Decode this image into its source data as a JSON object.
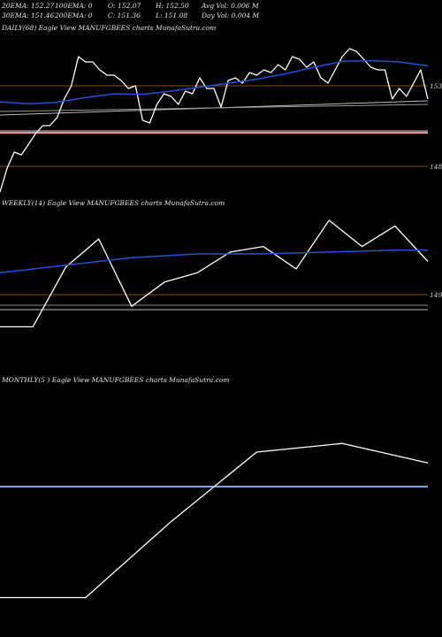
{
  "header": {
    "row1": [
      "20EMA: 152.27",
      "100EMA: 0",
      "O: 152.07",
      "H: 152.50",
      "Avg Vol: 0.006  M"
    ],
    "row2": [
      "30EMA: 151.46",
      "200EMA: 0",
      "C: 151.36",
      "L: 151.08",
      "Day Vol: 0.004 M"
    ]
  },
  "colors": {
    "background": "#000000",
    "price": "#ffffff",
    "ema": "#1e50dc",
    "pink": "#f08cb4",
    "blue_band": "#7aa6e6",
    "orange_grid": "#b06a1a",
    "gray": "#bbbbbb"
  },
  "chart_data": [
    {
      "type": "line",
      "panel": "daily",
      "label": "DAILY(68) Eagle   View  MANUFGBEES charts MunafaSutra.com",
      "ylim": [
        147.8,
        153.8
      ],
      "yticks": [
        {
          "value": 153,
          "label": "153"
        },
        {
          "value": 148,
          "label": "148"
        }
      ],
      "hlines": [
        151.35,
        151.22
      ],
      "series": [
        {
          "role": "close",
          "x": [
            0,
            1,
            2,
            3,
            4,
            5,
            6,
            7,
            8,
            9,
            10,
            11,
            12,
            13,
            14,
            15,
            16,
            17,
            18,
            19,
            20,
            21,
            22,
            23,
            24,
            25,
            26,
            27,
            28,
            29,
            30,
            31,
            32,
            33,
            34,
            35,
            36,
            37,
            38,
            39,
            40,
            41,
            42,
            43,
            44,
            45,
            46,
            47,
            48,
            49,
            50,
            51,
            52,
            53,
            54,
            55,
            56,
            57,
            58,
            59,
            60
          ],
          "values": [
            147.9,
            148.8,
            149.4,
            149.3,
            149.7,
            150.1,
            150.4,
            150.4,
            150.7,
            151.4,
            151.9,
            153.0,
            152.8,
            152.8,
            152.5,
            152.3,
            152.3,
            152.1,
            151.8,
            151.9,
            150.6,
            150.5,
            151.2,
            151.6,
            151.5,
            151.2,
            151.7,
            151.6,
            152.2,
            151.8,
            151.8,
            151.1,
            152.1,
            152.2,
            152.0,
            152.4,
            152.3,
            152.5,
            152.4,
            152.7,
            152.5,
            153.0,
            152.9,
            152.6,
            152.8,
            152.2,
            152.0,
            152.5,
            153.0,
            153.3,
            153.2,
            152.9,
            152.6,
            152.5,
            152.5,
            151.4,
            151.8,
            151.5,
            152.0,
            152.5,
            151.4
          ]
        },
        {
          "role": "ema",
          "x": [
            0,
            4,
            8,
            12,
            16,
            20,
            24,
            28,
            32,
            36,
            40,
            44,
            48,
            52,
            56,
            60
          ],
          "values": [
            151.3,
            151.22,
            151.28,
            151.46,
            151.6,
            151.58,
            151.7,
            151.85,
            152.0,
            152.15,
            152.35,
            152.6,
            152.82,
            152.85,
            152.8,
            152.65
          ]
        }
      ]
    },
    {
      "type": "line",
      "panel": "weekly",
      "label": "WEEKLY(14) Eagle   View  MANUFGBEES charts MunafaSutra.com",
      "ylim": [
        146.4,
        153.5
      ],
      "yticks": [
        {
          "value": 149,
          "label": "149"
        }
      ],
      "hlines": [
        148.3,
        148.1
      ],
      "series": [
        {
          "role": "close",
          "x": [
            0,
            1,
            2,
            3,
            4,
            5,
            6,
            7,
            8,
            9,
            10,
            11,
            12,
            13
          ],
          "values": [
            146.9,
            146.9,
            150.1,
            151.6,
            148.0,
            149.3,
            149.8,
            150.9,
            151.2,
            150.0,
            152.6,
            151.2,
            152.3,
            150.4
          ]
        },
        {
          "role": "ema",
          "x": [
            0,
            2,
            4,
            6,
            8,
            10,
            12,
            13
          ],
          "values": [
            149.8,
            150.2,
            150.6,
            150.8,
            150.8,
            150.9,
            151.0,
            151.0
          ]
        }
      ]
    },
    {
      "type": "line",
      "panel": "monthly",
      "label": "MONTHLY(5           ) Eagle   View  MANUFGBEES charts MunafaSutra.com",
      "ylim": [
        143.5,
        154.5
      ],
      "yticks": [],
      "hlines": [
        148.5
      ],
      "series": [
        {
          "role": "close",
          "x": [
            0,
            1,
            2,
            3,
            4,
            5
          ],
          "values": [
            144.5,
            144.5,
            148.0,
            151.2,
            151.6,
            150.7
          ]
        }
      ]
    }
  ]
}
